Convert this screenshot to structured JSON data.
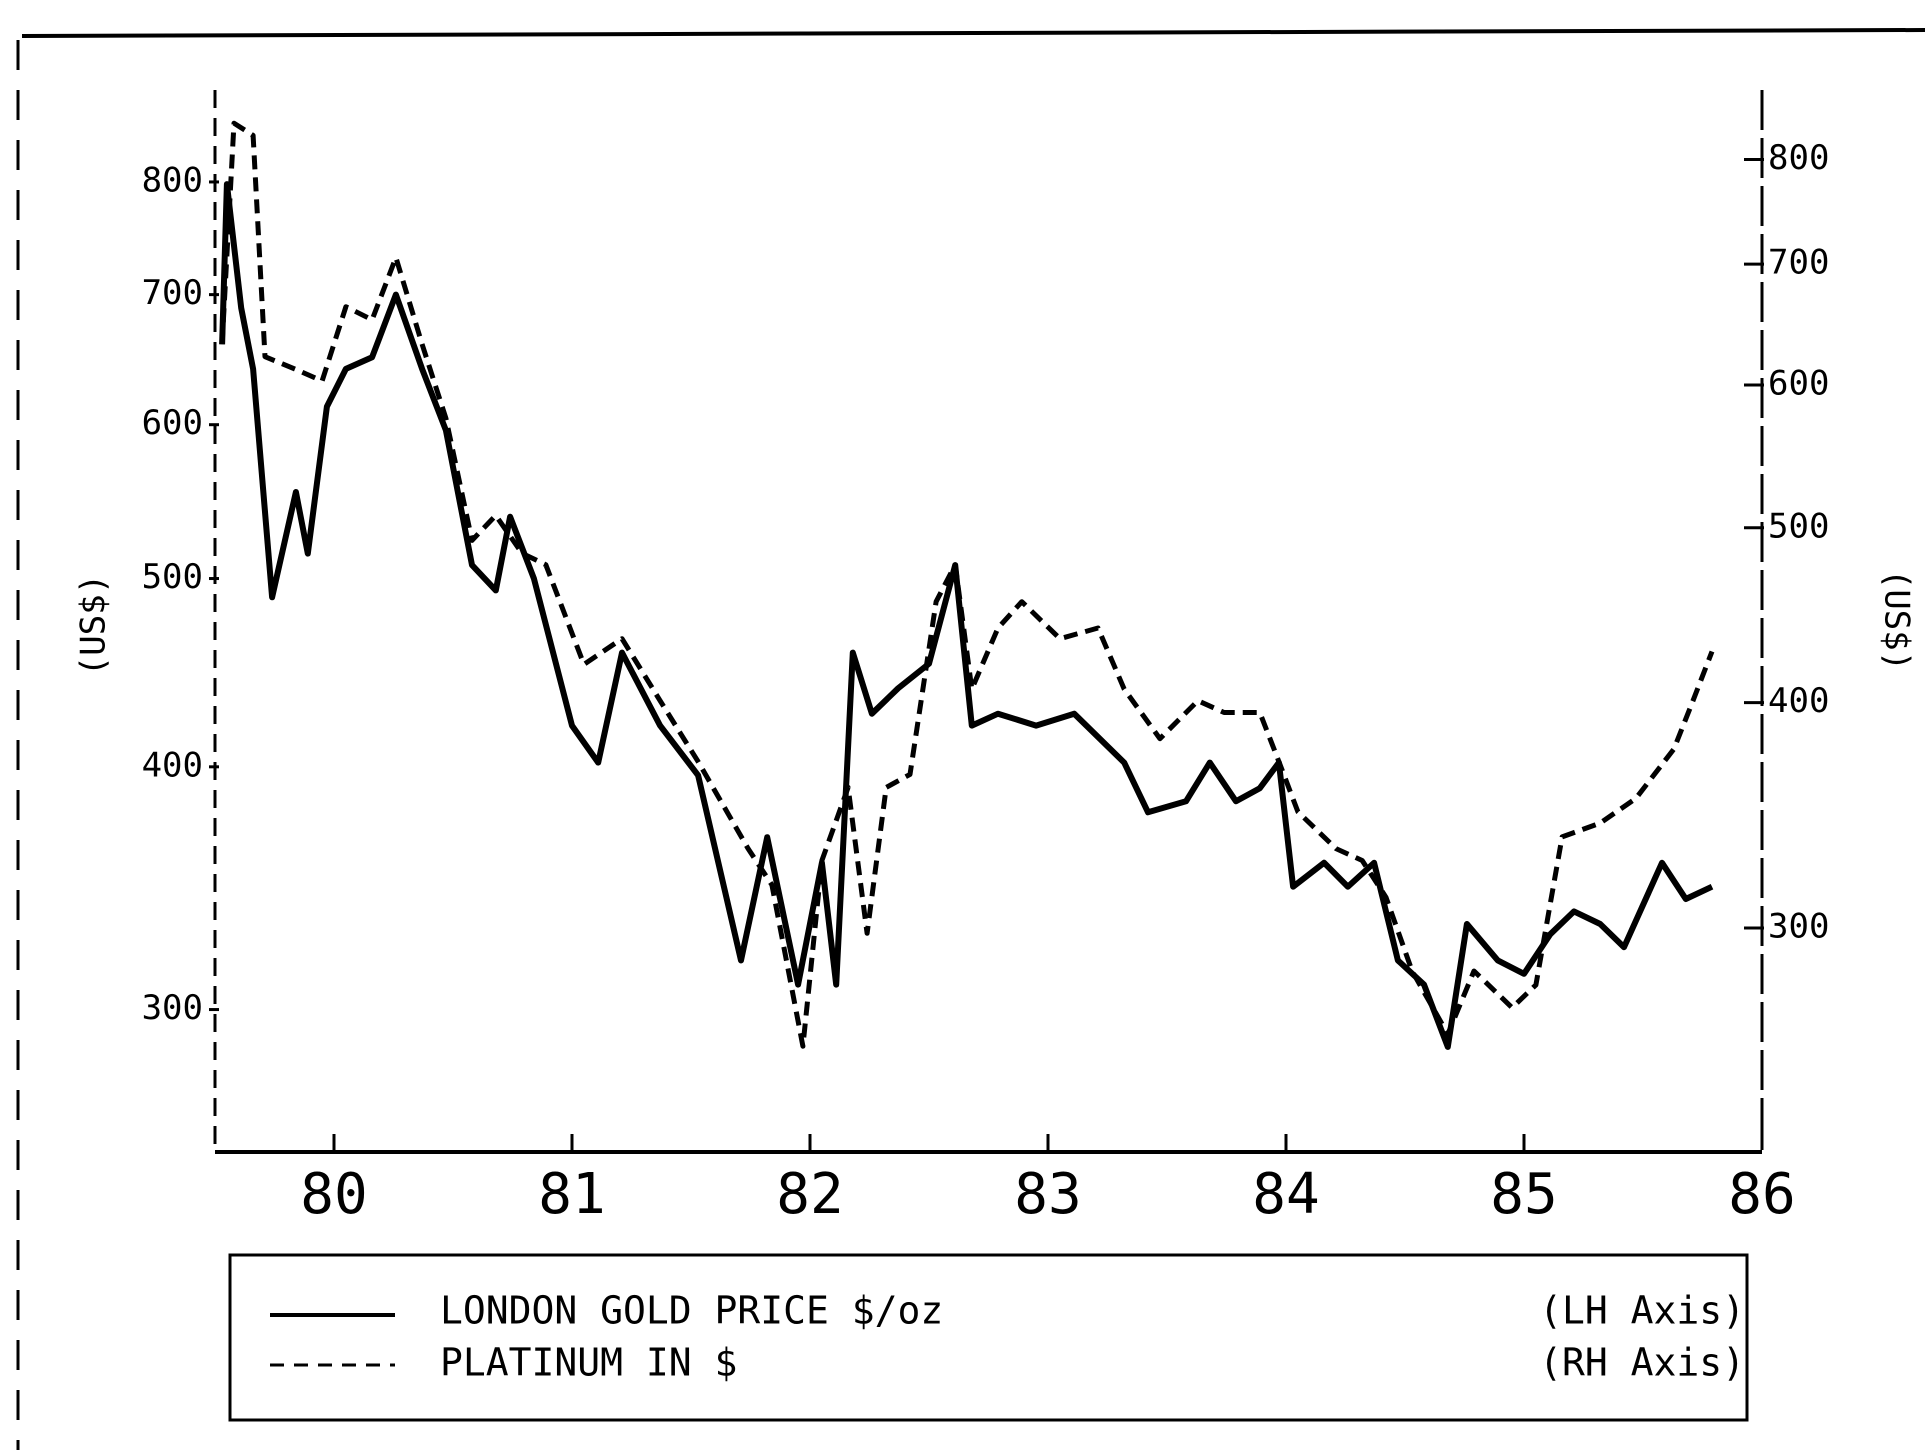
{
  "chart_data": {
    "type": "line",
    "y_label": "(US$)",
    "y2_label": "(US$)",
    "xlim": [
      79.5,
      86
    ],
    "xticks": [
      80,
      81,
      82,
      83,
      84,
      85,
      86
    ],
    "ylim": [
      254,
      890
    ],
    "yticks": [
      300,
      400,
      500,
      600,
      700,
      800
    ],
    "yscale": "log",
    "y2lim": [
      226,
      872
    ],
    "y2ticks": [
      300,
      400,
      500,
      600,
      700,
      800
    ],
    "y2scale": "log",
    "series": [
      {
        "name": "LONDON GOLD PRICE $/oz",
        "axis_note": "(LH Axis)",
        "color": "#000000",
        "dash": false,
        "axis": "y",
        "x": [
          79.53,
          79.55,
          79.61,
          79.66,
          79.74,
          79.84,
          79.89,
          79.97,
          80.05,
          80.16,
          80.26,
          80.37,
          80.47,
          80.58,
          80.68,
          80.74,
          80.84,
          81.0,
          81.11,
          81.21,
          81.37,
          81.53,
          81.71,
          81.82,
          81.95,
          82.05,
          82.11,
          82.18,
          82.26,
          82.37,
          82.5,
          82.61,
          82.68,
          82.79,
          82.95,
          83.11,
          83.32,
          83.42,
          83.58,
          83.68,
          83.79,
          83.89,
          83.97,
          84.03,
          84.16,
          84.26,
          84.37,
          84.47,
          84.58,
          84.68,
          84.76,
          84.89,
          85.0,
          85.11,
          85.21,
          85.32,
          85.42,
          85.58,
          85.68,
          85.79
        ],
        "values": [
          660,
          798,
          689,
          641,
          489,
          554,
          515,
          613,
          641,
          650,
          700,
          641,
          596,
          508,
          493,
          538,
          500,
          420,
          402,
          458,
          420,
          396,
          318,
          368,
          309,
          357,
          309,
          458,
          426,
          439,
          452,
          508,
          420,
          426,
          420,
          426,
          402,
          379,
          384,
          402,
          384,
          390,
          402,
          347,
          357,
          347,
          357,
          318,
          309,
          287,
          332,
          318,
          313,
          328,
          337,
          332,
          323,
          357,
          342,
          347
        ]
      },
      {
        "name": "PLATINUM IN $",
        "axis_note": "(RH Axis)",
        "color": "#000000",
        "dash": true,
        "axis": "y2",
        "x": [
          79.53,
          79.58,
          79.66,
          79.71,
          79.84,
          79.95,
          80.05,
          80.16,
          80.26,
          80.37,
          80.47,
          80.58,
          80.68,
          80.79,
          80.89,
          81.05,
          81.21,
          81.37,
          81.53,
          81.74,
          81.84,
          81.97,
          82.05,
          82.16,
          82.24,
          82.32,
          82.42,
          82.53,
          82.61,
          82.68,
          82.79,
          82.89,
          83.05,
          83.21,
          83.32,
          83.47,
          83.63,
          83.74,
          83.89,
          83.97,
          84.05,
          84.21,
          84.32,
          84.42,
          84.53,
          84.68,
          84.79,
          84.95,
          85.05,
          85.16,
          85.32,
          85.47,
          85.63,
          85.71,
          85.79
        ],
        "values": [
          632,
          838,
          825,
          622,
          612,
          603,
          663,
          652,
          706,
          632,
          575,
          492,
          508,
          484,
          477,
          420,
          434,
          401,
          371,
          332,
          317,
          258,
          327,
          359,
          298,
          359,
          365,
          455,
          477,
          407,
          440,
          455,
          434,
          440,
          407,
          382,
          401,
          395,
          395,
          371,
          348,
          332,
          327,
          312,
          284,
          262,
          284,
          271,
          279,
          337,
          343,
          354,
          377,
          401,
          427
        ]
      }
    ]
  }
}
